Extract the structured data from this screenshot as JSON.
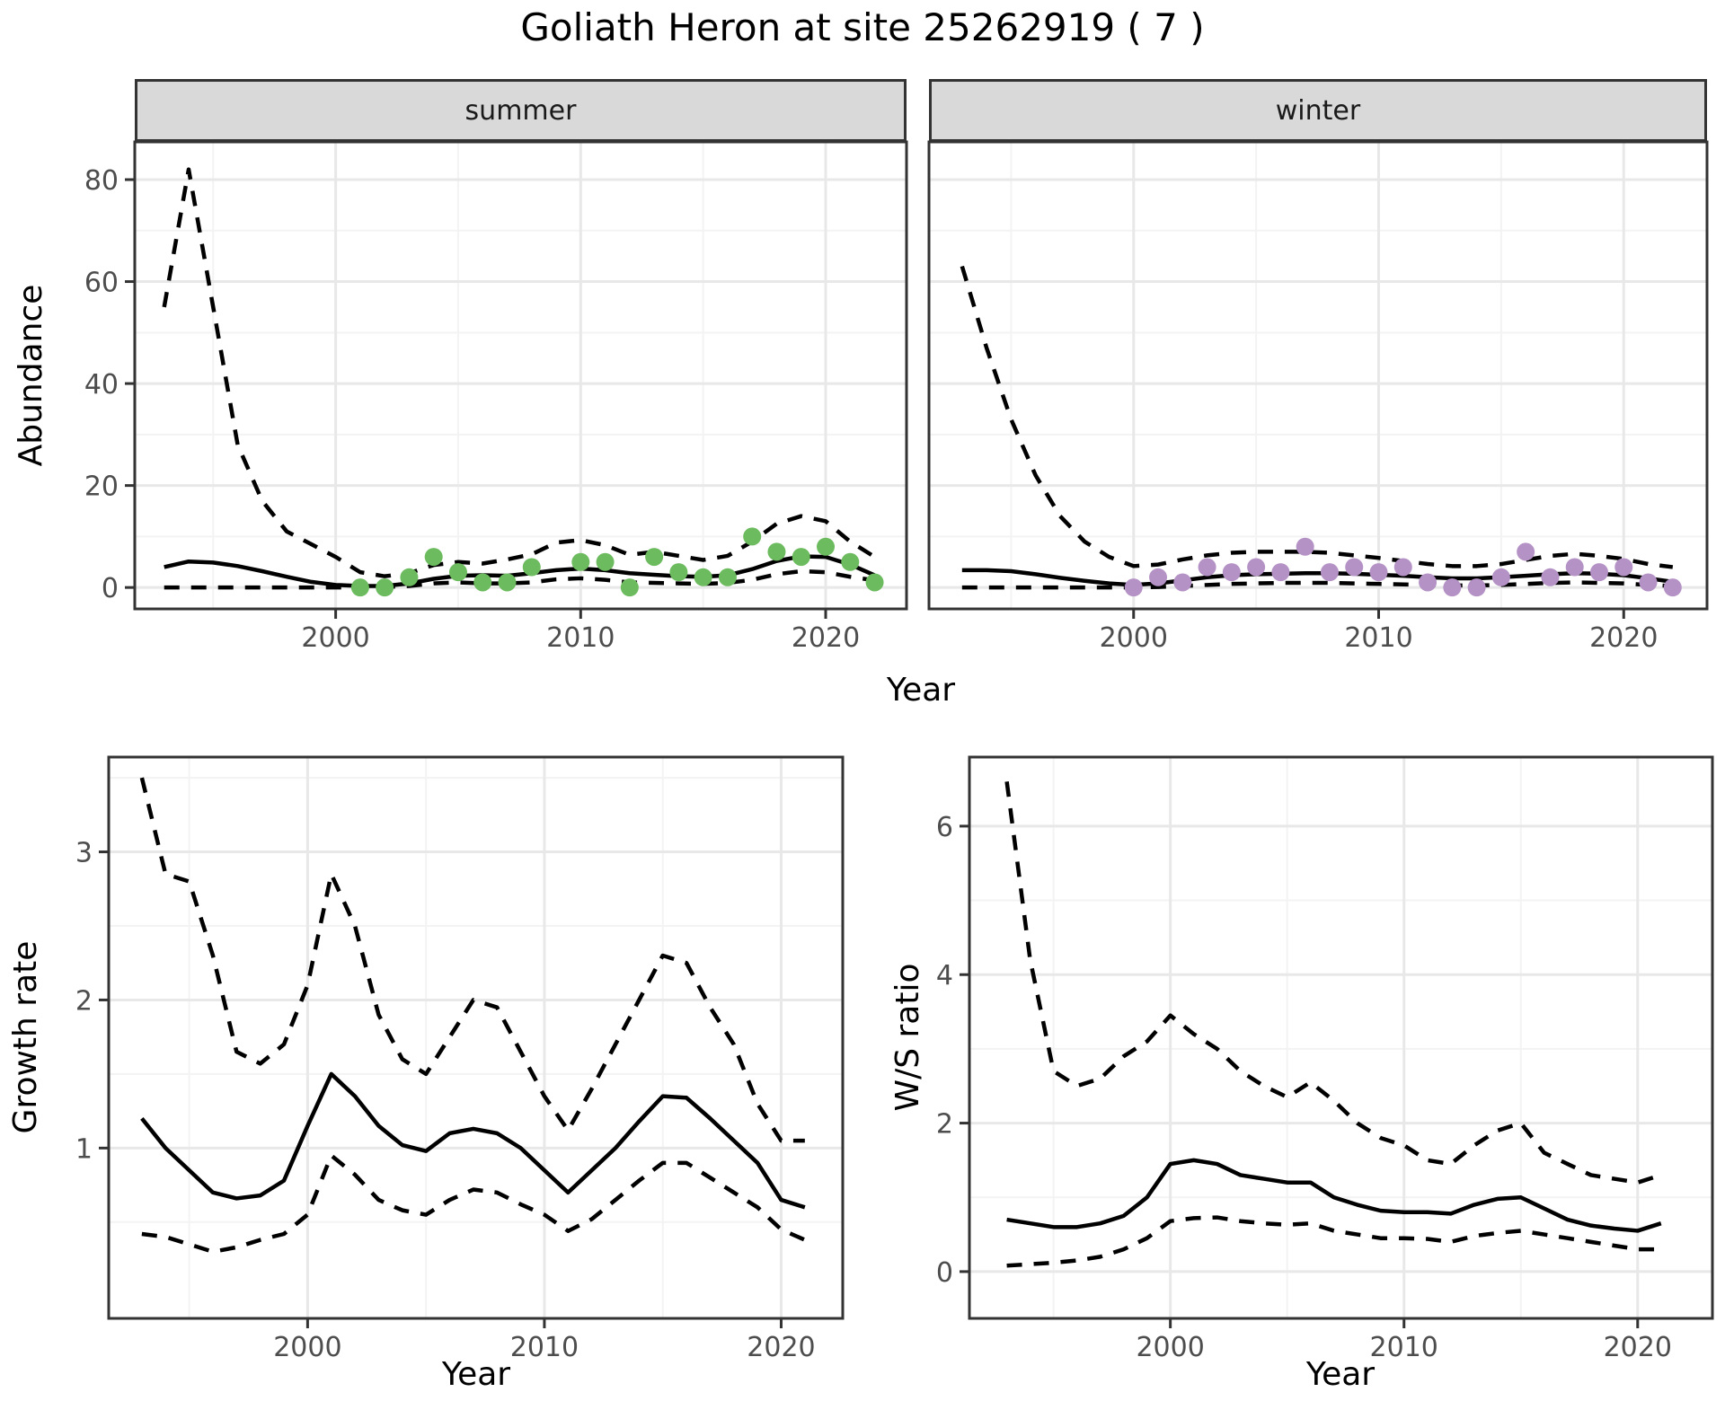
{
  "title": "Goliath Heron at site 25262919 ( 7 )",
  "colors": {
    "summer_points": "#6CBB5E",
    "winter_points": "#B592C6",
    "line": "#000000",
    "strip_background": "#D9D9D9",
    "panel_border": "#333333",
    "grid_major": "#E8E8E8",
    "grid_minor": "#F3F3F3",
    "axis_text": "#4D4D4D"
  },
  "chart_data": [
    {
      "id": "abundance_summer",
      "type": "line",
      "facet_label": "summer",
      "xlabel": "Year",
      "ylabel": "Abundance",
      "xlim": [
        1991.8,
        2023.3
      ],
      "ylim": [
        -4.2,
        87.4
      ],
      "xticks": [
        2000,
        2010,
        2020
      ],
      "xticks_minor": [
        1995,
        2005,
        2015
      ],
      "yticks": [
        0,
        20,
        40,
        60,
        80
      ],
      "yticks_minor": [
        10,
        30,
        50,
        70
      ],
      "show_y_ticks": true,
      "grid": true,
      "years": [
        1993,
        1994,
        1995,
        1996,
        1997,
        1998,
        1999,
        2000,
        2001,
        2002,
        2003,
        2004,
        2005,
        2006,
        2007,
        2008,
        2009,
        2010,
        2011,
        2012,
        2013,
        2014,
        2015,
        2016,
        2017,
        2018,
        2019,
        2020,
        2021,
        2022
      ],
      "series": [
        {
          "name": "upper_ci",
          "style": "dashed",
          "values": [
            55,
            82,
            55,
            28,
            17,
            11,
            8.5,
            6,
            3,
            2.2,
            2.8,
            4.4,
            5,
            4.7,
            5.5,
            6.5,
            8.8,
            9.3,
            8.3,
            6.4,
            7,
            6.2,
            5.4,
            6.2,
            9,
            12.5,
            14,
            13,
            9,
            6
          ]
        },
        {
          "name": "mean",
          "style": "solid",
          "values": [
            4,
            5.1,
            4.9,
            4.2,
            3.2,
            2.1,
            1.1,
            0.5,
            0.3,
            0.3,
            0.8,
            1.7,
            2.3,
            2.4,
            2.3,
            2.8,
            3.4,
            3.7,
            3.4,
            2.8,
            2.5,
            2.2,
            2.1,
            2.4,
            3.6,
            5.2,
            6.1,
            6,
            4.5,
            2.4
          ]
        },
        {
          "name": "lower_ci",
          "style": "dashed",
          "values": [
            0,
            0,
            0,
            0,
            0,
            0,
            0,
            0,
            0,
            0.1,
            0.3,
            0.8,
            1,
            0.8,
            0.8,
            1,
            1.6,
            1.8,
            1.5,
            1,
            0.9,
            0.8,
            0.7,
            0.9,
            1.5,
            2.6,
            3.2,
            3,
            2.1,
            1.4
          ]
        }
      ],
      "points": {
        "name": "summer_counts",
        "color": "#6CBB5E",
        "years": [
          2001,
          2002,
          2003,
          2004,
          2005,
          2006,
          2007,
          2008,
          2010,
          2011,
          2012,
          2013,
          2014,
          2015,
          2016,
          2017,
          2018,
          2019,
          2020,
          2021,
          2022
        ],
        "values": [
          0,
          0,
          2,
          6,
          3,
          1,
          1,
          4,
          5,
          5,
          0,
          6,
          3,
          2,
          2,
          10,
          7,
          6,
          8,
          5,
          1
        ]
      }
    },
    {
      "id": "abundance_winter",
      "type": "line",
      "facet_label": "winter",
      "xlabel": "Year",
      "ylabel": "Abundance",
      "xlim": [
        1991.65,
        2023.4
      ],
      "ylim": [
        -4.2,
        87.4
      ],
      "xticks": [
        2000,
        2010,
        2020
      ],
      "xticks_minor": [
        1995,
        2005,
        2015
      ],
      "yticks": [
        0,
        20,
        40,
        60,
        80
      ],
      "yticks_minor": [
        10,
        30,
        50,
        70
      ],
      "show_y_ticks": false,
      "grid": true,
      "years": [
        1993,
        1994,
        1995,
        1996,
        1997,
        1998,
        1999,
        2000,
        2001,
        2002,
        2003,
        2004,
        2005,
        2006,
        2007,
        2008,
        2009,
        2010,
        2011,
        2012,
        2013,
        2014,
        2015,
        2016,
        2017,
        2018,
        2019,
        2020,
        2021,
        2022
      ],
      "series": [
        {
          "name": "upper_ci",
          "style": "dashed",
          "values": [
            63,
            47,
            33,
            22,
            14,
            9,
            6,
            4.2,
            4.5,
            5.5,
            6.3,
            6.8,
            7,
            7,
            7,
            6.8,
            6.3,
            5.8,
            5.2,
            4.6,
            4.2,
            4.2,
            4.6,
            5.4,
            6.2,
            6.6,
            6.2,
            5.6,
            4.6,
            4
          ]
        },
        {
          "name": "mean",
          "style": "solid",
          "values": [
            3.4,
            3.4,
            3.2,
            2.6,
            1.9,
            1.3,
            0.8,
            0.5,
            0.8,
            1.4,
            2,
            2.4,
            2.6,
            2.7,
            2.8,
            2.8,
            2.7,
            2.5,
            2.3,
            2,
            1.8,
            1.8,
            2,
            2.3,
            2.6,
            2.8,
            2.7,
            2.4,
            1.8,
            1.1
          ]
        },
        {
          "name": "lower_ci",
          "style": "dashed",
          "values": [
            0,
            0,
            0,
            0,
            0,
            0,
            0,
            0,
            0.1,
            0.3,
            0.5,
            0.7,
            0.8,
            0.9,
            0.9,
            0.9,
            0.8,
            0.7,
            0.6,
            0.5,
            0.4,
            0.4,
            0.5,
            0.7,
            0.9,
            1,
            0.9,
            0.8,
            0.5,
            0.3
          ]
        }
      ],
      "points": {
        "name": "winter_counts",
        "color": "#B592C6",
        "years": [
          2000,
          2001,
          2002,
          2003,
          2004,
          2005,
          2006,
          2007,
          2008,
          2009,
          2010,
          2011,
          2012,
          2013,
          2014,
          2015,
          2016,
          2017,
          2018,
          2019,
          2020,
          2021,
          2022
        ],
        "values": [
          0,
          2,
          1,
          4,
          3,
          4,
          3,
          8,
          3,
          4,
          3,
          4,
          1,
          0,
          0,
          2,
          7,
          2,
          4,
          3,
          4,
          1,
          0
        ]
      }
    },
    {
      "id": "growth_rate",
      "type": "line",
      "facet_label": "",
      "xlabel": "Year",
      "ylabel": "Growth rate",
      "xlim": [
        1991.6,
        2022.6
      ],
      "ylim": [
        -0.15,
        3.64
      ],
      "xticks": [
        2000,
        2010,
        2020
      ],
      "xticks_minor": [
        1995,
        2005,
        2015
      ],
      "yticks": [
        1,
        2,
        3
      ],
      "yticks_minor": [
        0.5,
        1.5,
        2.5,
        3.5
      ],
      "show_y_ticks": true,
      "grid": true,
      "years": [
        1993,
        1994,
        1995,
        1996,
        1997,
        1998,
        1999,
        2000,
        2001,
        2002,
        2003,
        2004,
        2005,
        2006,
        2007,
        2008,
        2009,
        2010,
        2011,
        2012,
        2013,
        2014,
        2015,
        2016,
        2017,
        2018,
        2019,
        2020,
        2021
      ],
      "series": [
        {
          "name": "upper_ci",
          "style": "dashed",
          "values": [
            3.5,
            2.85,
            2.8,
            2.3,
            1.65,
            1.57,
            1.7,
            2.1,
            2.85,
            2.5,
            1.9,
            1.6,
            1.5,
            1.75,
            2,
            1.95,
            1.65,
            1.35,
            1.12,
            1.4,
            1.7,
            2,
            2.3,
            2.25,
            1.95,
            1.7,
            1.3,
            1.05,
            1.05
          ]
        },
        {
          "name": "mean",
          "style": "solid",
          "values": [
            1.2,
            1,
            0.85,
            0.7,
            0.66,
            0.68,
            0.78,
            1.15,
            1.5,
            1.35,
            1.15,
            1.02,
            0.98,
            1.1,
            1.13,
            1.1,
            1,
            0.85,
            0.7,
            0.85,
            1,
            1.18,
            1.35,
            1.34,
            1.2,
            1.05,
            0.9,
            0.65,
            0.6
          ]
        },
        {
          "name": "lower_ci",
          "style": "dashed",
          "values": [
            0.42,
            0.4,
            0.35,
            0.3,
            0.33,
            0.38,
            0.42,
            0.55,
            0.95,
            0.82,
            0.65,
            0.58,
            0.55,
            0.65,
            0.72,
            0.7,
            0.62,
            0.55,
            0.44,
            0.52,
            0.65,
            0.78,
            0.9,
            0.9,
            0.8,
            0.7,
            0.6,
            0.45,
            0.38
          ]
        }
      ]
    },
    {
      "id": "ws_ratio",
      "type": "line",
      "facet_label": "",
      "xlabel": "Year",
      "ylabel": "W/S ratio",
      "xlim": [
        1991.4,
        2023.2
      ],
      "ylim": [
        -0.63,
        6.93
      ],
      "xticks": [
        2000,
        2010,
        2020
      ],
      "xticks_minor": [
        1995,
        2005,
        2015
      ],
      "yticks": [
        0,
        2,
        4,
        6
      ],
      "yticks_minor": [
        1,
        3,
        5
      ],
      "show_y_ticks": true,
      "grid": true,
      "years": [
        1993,
        1994,
        1995,
        1996,
        1997,
        1998,
        1999,
        2000,
        2001,
        2002,
        2003,
        2004,
        2005,
        2006,
        2007,
        2008,
        2009,
        2010,
        2011,
        2012,
        2013,
        2014,
        2015,
        2016,
        2017,
        2018,
        2019,
        2020,
        2021
      ],
      "series": [
        {
          "name": "upper_ci",
          "style": "dashed",
          "values": [
            6.6,
            4.2,
            2.7,
            2.5,
            2.6,
            2.9,
            3.1,
            3.45,
            3.2,
            3,
            2.7,
            2.5,
            2.35,
            2.55,
            2.3,
            2,
            1.8,
            1.7,
            1.5,
            1.45,
            1.7,
            1.9,
            2,
            1.6,
            1.45,
            1.3,
            1.25,
            1.2,
            1.3
          ]
        },
        {
          "name": "mean",
          "style": "solid",
          "values": [
            0.7,
            0.65,
            0.6,
            0.6,
            0.65,
            0.75,
            1,
            1.45,
            1.5,
            1.45,
            1.3,
            1.25,
            1.2,
            1.2,
            1,
            0.9,
            0.82,
            0.8,
            0.8,
            0.78,
            0.9,
            0.98,
            1,
            0.85,
            0.7,
            0.62,
            0.58,
            0.55,
            0.65
          ]
        },
        {
          "name": "lower_ci",
          "style": "dashed",
          "values": [
            0.08,
            0.1,
            0.12,
            0.15,
            0.2,
            0.3,
            0.45,
            0.68,
            0.72,
            0.73,
            0.68,
            0.65,
            0.63,
            0.65,
            0.55,
            0.5,
            0.45,
            0.45,
            0.44,
            0.4,
            0.48,
            0.52,
            0.55,
            0.5,
            0.45,
            0.4,
            0.35,
            0.3,
            0.3
          ]
        }
      ]
    }
  ]
}
